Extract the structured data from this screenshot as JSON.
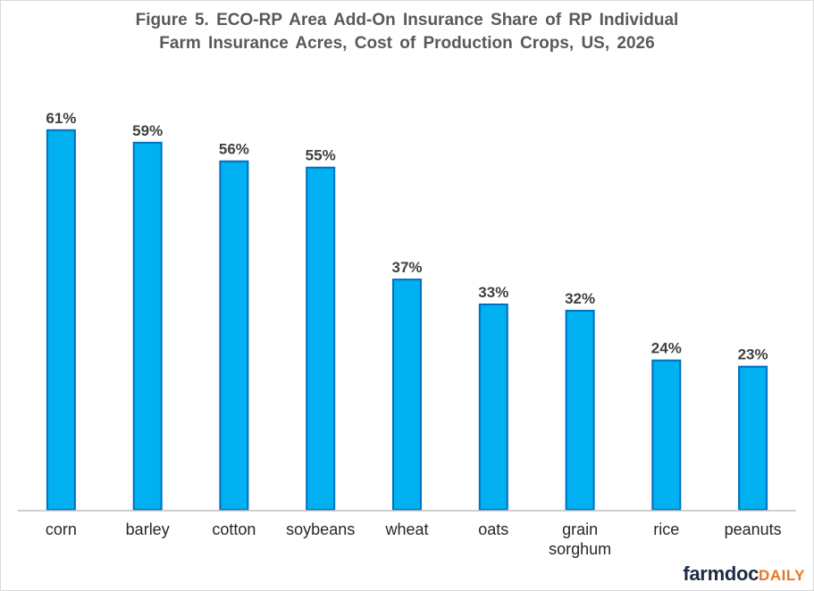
{
  "chart_data": {
    "type": "bar",
    "title_line1": "Figure 5.  ECO-RP Area Add-On Insurance Share of RP Individual",
    "title_line2": "Farm Insurance Acres, Cost of Production Crops, US, 2026",
    "categories": [
      "corn",
      "barley",
      "cotton",
      "soybeans",
      "wheat",
      "oats",
      "grain sorghum",
      "rice",
      "peanuts"
    ],
    "category_lines": [
      [
        "corn"
      ],
      [
        "barley"
      ],
      [
        "cotton"
      ],
      [
        "soybeans"
      ],
      [
        "wheat"
      ],
      [
        "oats"
      ],
      [
        "grain",
        "sorghum"
      ],
      [
        "rice"
      ],
      [
        "peanuts"
      ]
    ],
    "values": [
      61,
      59,
      56,
      55,
      37,
      33,
      32,
      24,
      23
    ],
    "data_labels": [
      "61%",
      "59%",
      "56%",
      "55%",
      "37%",
      "33%",
      "32%",
      "24%",
      "23%"
    ],
    "value_unit": "%",
    "ylim": [
      0,
      66
    ],
    "grid": false,
    "legend": "none",
    "bar_color": "#00b0f0",
    "bar_edge_color": "#0070c0"
  },
  "logo": {
    "part1": "farmdoc",
    "part2": "DAILY"
  }
}
